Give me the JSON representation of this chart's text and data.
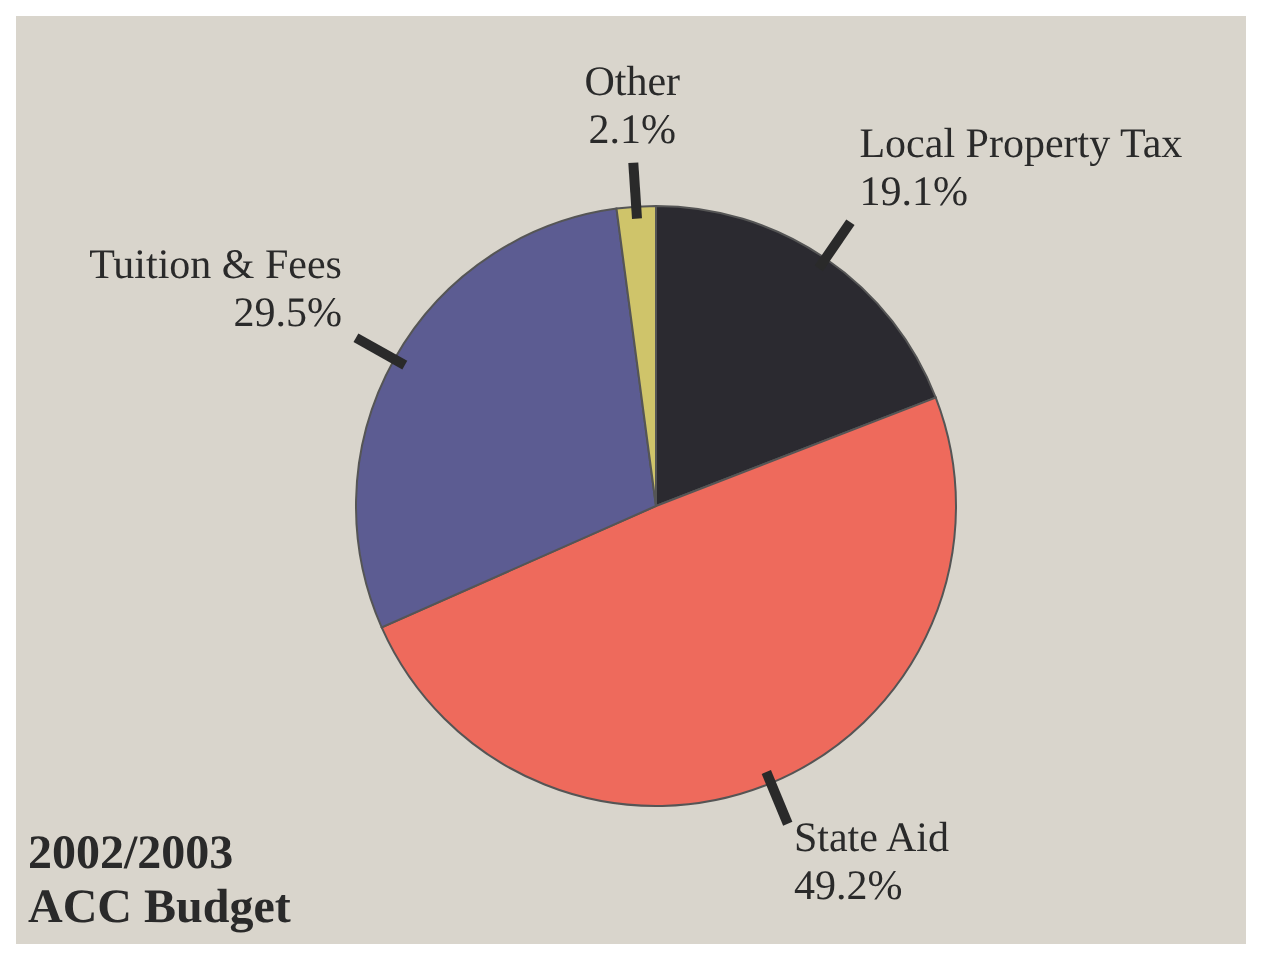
{
  "chart_data": {
    "type": "pie",
    "title": "2002/2003 ACC Budget",
    "categories": [
      "Local Property Tax",
      "State Aid",
      "Tuition & Fees",
      "Other"
    ],
    "values": [
      19.1,
      49.2,
      29.5,
      2.1
    ],
    "value_labels": [
      "19.1%",
      "49.2%",
      "29.5%",
      "2.1%"
    ],
    "colors": [
      "#2b2a30",
      "#ee6a5c",
      "#5c5c92",
      "#cfc46a"
    ]
  }
}
